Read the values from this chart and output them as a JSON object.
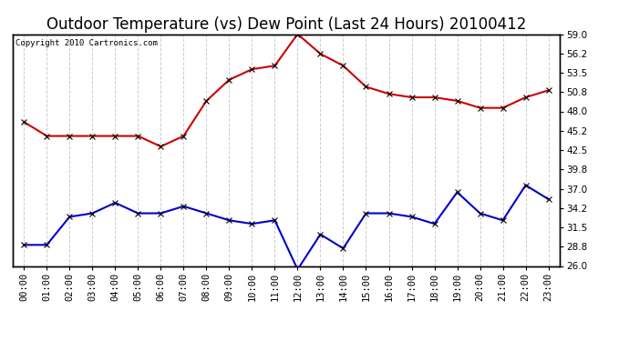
{
  "title": "Outdoor Temperature (vs) Dew Point (Last 24 Hours) 20100412",
  "copyright_text": "Copyright 2010 Cartronics.com",
  "hours": [
    "00:00",
    "01:00",
    "02:00",
    "03:00",
    "04:00",
    "05:00",
    "06:00",
    "07:00",
    "08:00",
    "09:00",
    "10:00",
    "11:00",
    "12:00",
    "13:00",
    "14:00",
    "15:00",
    "16:00",
    "17:00",
    "18:00",
    "19:00",
    "20:00",
    "21:00",
    "22:00",
    "23:00"
  ],
  "temp": [
    46.5,
    44.5,
    44.5,
    44.5,
    44.5,
    44.5,
    43.0,
    44.5,
    49.5,
    52.5,
    54.0,
    54.5,
    59.0,
    56.2,
    54.5,
    51.5,
    50.5,
    50.0,
    50.0,
    49.5,
    48.5,
    48.5,
    50.0,
    51.0
  ],
  "dewpoint": [
    29.0,
    29.0,
    33.0,
    33.5,
    35.0,
    33.5,
    33.5,
    34.5,
    33.5,
    32.5,
    32.0,
    32.5,
    25.5,
    30.5,
    28.5,
    33.5,
    33.5,
    33.0,
    32.0,
    36.5,
    33.5,
    32.5,
    37.5,
    35.5
  ],
  "temp_color": "#cc0000",
  "dew_color": "#0000cc",
  "bg_color": "#ffffff",
  "plot_bg": "#ffffff",
  "ylim": [
    26.0,
    59.0
  ],
  "yticks_right": [
    26.0,
    28.8,
    31.5,
    34.2,
    37.0,
    39.8,
    42.5,
    45.2,
    48.0,
    50.8,
    53.5,
    56.2,
    59.0
  ],
  "grid_color": "#cccccc",
  "title_fontsize": 12,
  "marker": "x",
  "markersize": 4,
  "linewidth": 1.5,
  "tick_fontsize": 7.5
}
